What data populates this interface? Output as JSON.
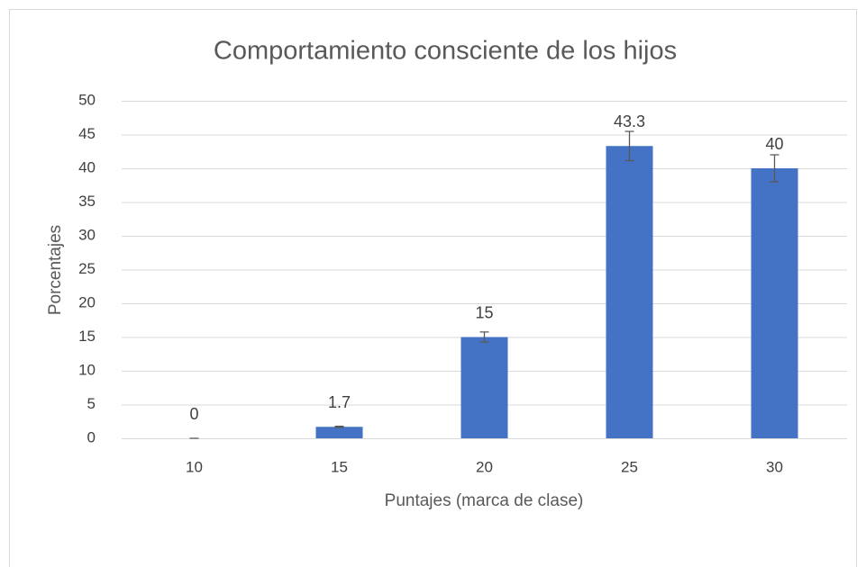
{
  "chart_data": {
    "type": "bar",
    "title": "Comportamiento consciente de los hijos",
    "x_label": "Puntajes (marca de clase)",
    "y_label": "Porcentajes",
    "categories": [
      "10",
      "15",
      "20",
      "25",
      "30"
    ],
    "values": [
      0,
      1.7,
      15,
      43.3,
      40
    ],
    "errors": [
      0,
      0.085,
      0.75,
      2.165,
      2
    ],
    "color": "#4472c4",
    "ylim": [
      0,
      50
    ],
    "yticks": [
      0,
      5,
      10,
      15,
      20,
      25,
      30,
      35,
      40,
      45,
      50
    ],
    "grid": true
  }
}
